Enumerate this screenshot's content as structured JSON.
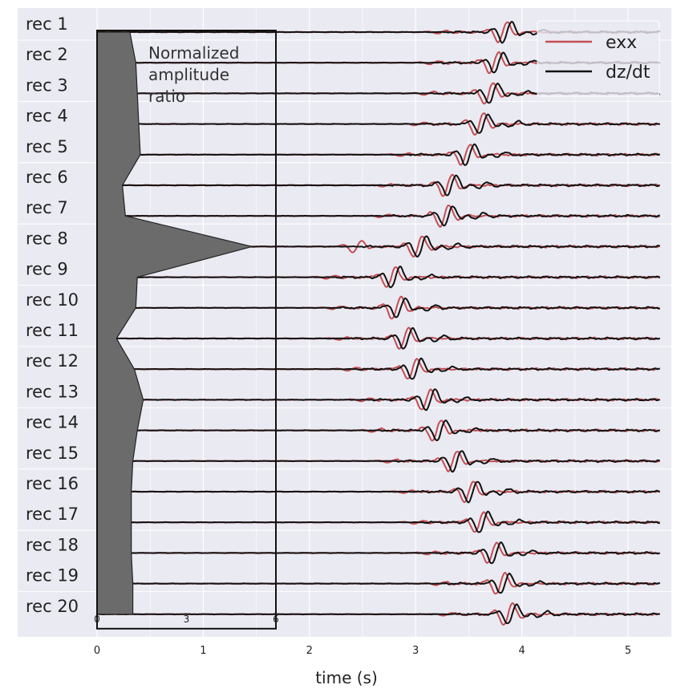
{
  "chart_data": {
    "type": "line",
    "title": "",
    "xlabel": "time (s)",
    "ylabel": "",
    "xlim": [
      -0.05,
      5.36
    ],
    "x_ticks": [
      0,
      1,
      2,
      3,
      4,
      5
    ],
    "grid": true,
    "legend": {
      "placement": "top-right",
      "entries": [
        "exx",
        "dz/dt"
      ]
    },
    "colors": {
      "exx": "#c44e52",
      "dzdt": "#111111",
      "fill": "#6b6b6b",
      "background": "#eaeaf2",
      "grid": "#ffffff"
    },
    "receivers": [
      "rec 1",
      "rec 2",
      "rec 3",
      "rec 4",
      "rec 5",
      "rec 6",
      "rec 7",
      "rec 8",
      "rec 9",
      "rec 10",
      "rec 11",
      "rec 12",
      "rec 13",
      "rec 14",
      "rec 15",
      "rec 16",
      "rec 17",
      "rec 18",
      "rec 19",
      "rec 20"
    ],
    "arrival_times_s": [
      3.8,
      3.72,
      3.67,
      3.58,
      3.45,
      3.28,
      3.25,
      3.0,
      2.75,
      2.8,
      2.87,
      2.95,
      3.08,
      3.18,
      3.33,
      3.48,
      3.58,
      3.7,
      3.78,
      3.85
    ],
    "inset": {
      "label": "Normalized amplitude ratio",
      "label_lines": [
        "Normalized",
        "amplitude",
        "ratio"
      ],
      "x_ticks": [
        0,
        3,
        6
      ],
      "xlim": [
        0,
        6
      ],
      "values": [
        1.1,
        1.3,
        1.35,
        1.4,
        1.45,
        0.85,
        0.95,
        5.2,
        1.35,
        1.3,
        0.65,
        1.25,
        1.55,
        1.35,
        1.2,
        1.15,
        1.15,
        1.15,
        1.2,
        1.2
      ]
    }
  }
}
